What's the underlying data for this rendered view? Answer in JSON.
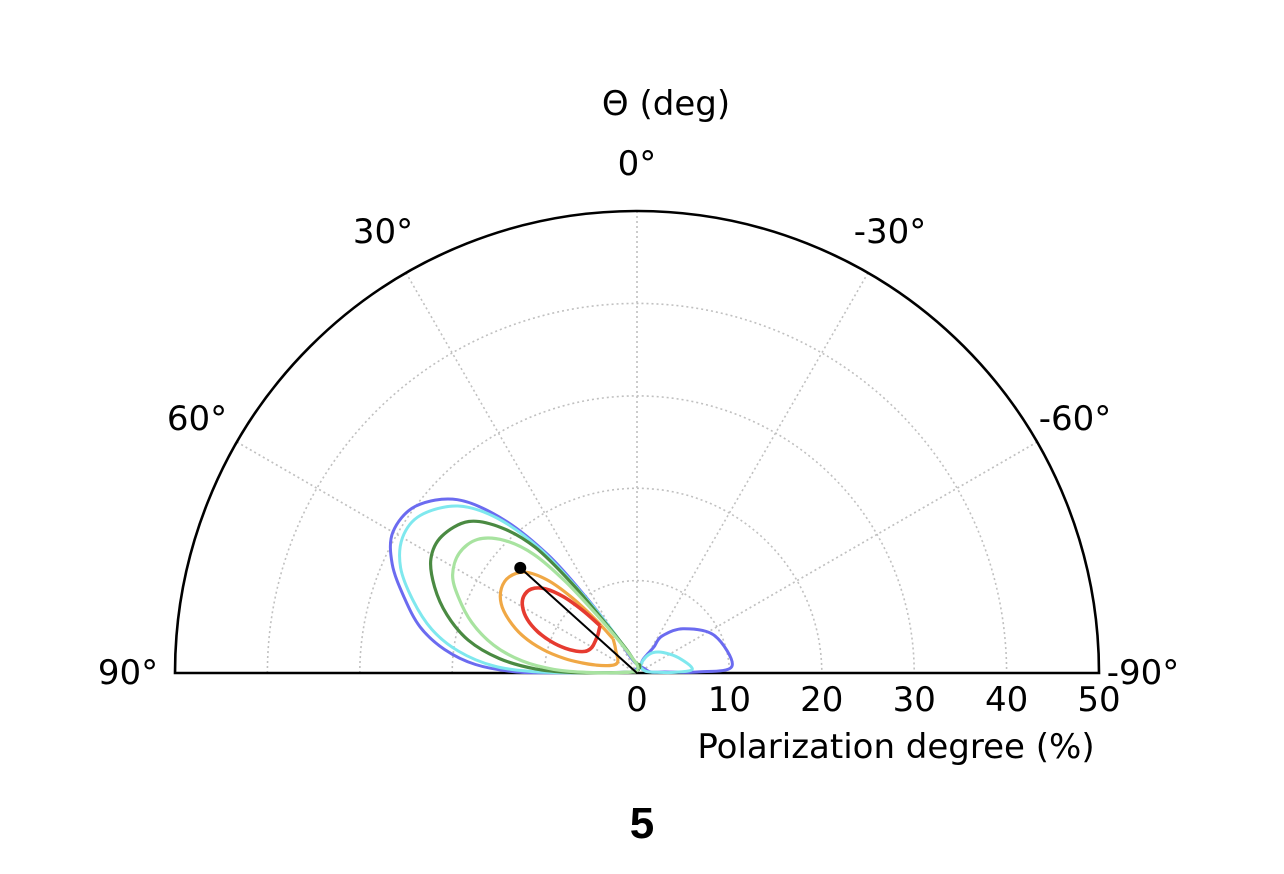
{
  "chart_data": {
    "type": "polar",
    "panel_label": "5",
    "title": "Θ (deg)",
    "xlabel": "Polarization degree (%)",
    "angle_range_deg": [
      -90,
      90
    ],
    "angle_ticks": [
      {
        "value": 0,
        "label": "0°"
      },
      {
        "value": 30,
        "label": "30°"
      },
      {
        "value": -30,
        "label": "-30°"
      },
      {
        "value": 60,
        "label": "60°"
      },
      {
        "value": -60,
        "label": "-60°"
      },
      {
        "value": 90,
        "label": "90°"
      },
      {
        "value": -90,
        "label": "-90°"
      }
    ],
    "radial_range": [
      0,
      50
    ],
    "radial_ticks": [
      {
        "value": 0,
        "label": "0"
      },
      {
        "value": 10,
        "label": "10"
      },
      {
        "value": 20,
        "label": "20"
      },
      {
        "value": 30,
        "label": "30"
      },
      {
        "value": 40,
        "label": "40"
      },
      {
        "value": 50,
        "label": "50"
      }
    ],
    "grid": true,
    "best_fit": {
      "polarization": 17,
      "angle_deg": 48
    },
    "contours": [
      {
        "color": "#6060ee",
        "points": [
          [
            0,
            0
          ],
          [
            2.4,
            -21
          ],
          [
            10.2,
            -87
          ],
          [
            0.7,
            -60
          ],
          [
            -0.2,
            0
          ],
          [
            0,
            15
          ],
          [
            1.2,
            40
          ],
          [
            0.5,
            55
          ],
          [
            -0.5,
            70
          ],
          [
            -1.6,
            83
          ],
          [
            -7,
            89
          ],
          [
            -15,
            90
          ]
        ],
        "_comment": "outer contour described below in polar pairs"
      }
    ]
  }
}
